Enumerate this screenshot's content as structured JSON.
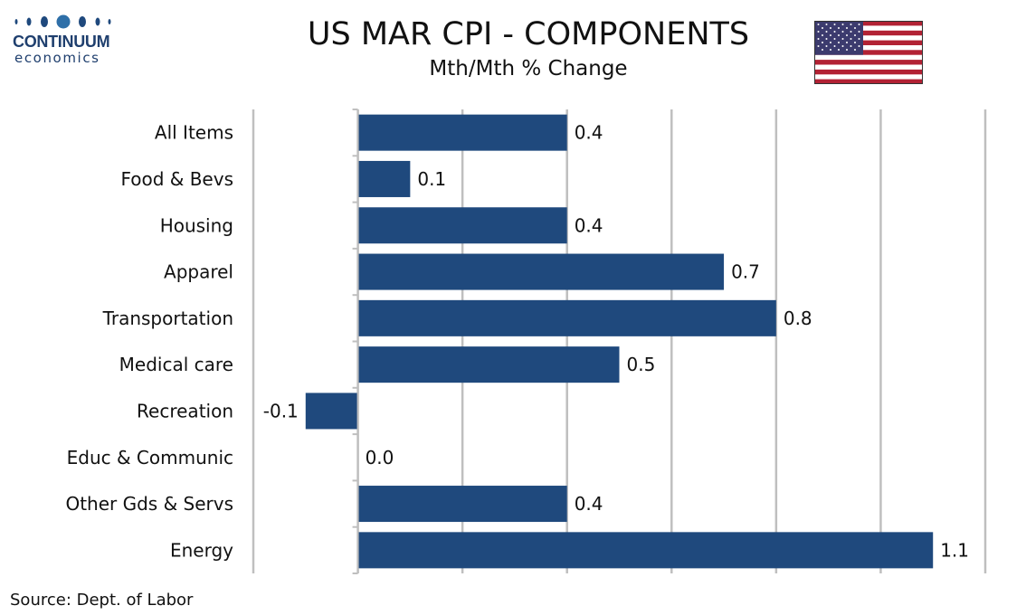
{
  "logo": {
    "name": "CONTINUUM",
    "tagline": "economics"
  },
  "header": {
    "title": "US MAR CPI - COMPONENTS",
    "subtitle": "Mth/Mth % Change"
  },
  "flag": {
    "icon": "us-flag-icon"
  },
  "chart_data": {
    "type": "bar",
    "orientation": "horizontal",
    "title": "US MAR CPI - COMPONENTS",
    "subtitle": "Mth/Mth % Change",
    "categories": [
      "All Items",
      "Food & Bevs",
      "Housing",
      "Apparel ",
      "Transportation",
      "Medical care",
      "Recreation",
      "Educ & Communic",
      "Other Gds & Servs",
      "Energy"
    ],
    "values": [
      0.4,
      0.1,
      0.4,
      0.7,
      0.8,
      0.5,
      -0.1,
      0.0,
      0.4,
      1.1
    ],
    "data_labels": [
      "0.4",
      "0.1",
      "0.4",
      "0.7",
      "0.8",
      "0.5",
      "-0.1",
      "0.0",
      "0.4",
      "1.1"
    ],
    "xlim": [
      -0.2,
      1.2
    ],
    "grid": true,
    "legend": "none",
    "bar_color": "#1f497d",
    "grid_color": "#bfbfbf"
  },
  "footer": {
    "source": "Source: Dept. of Labor"
  }
}
